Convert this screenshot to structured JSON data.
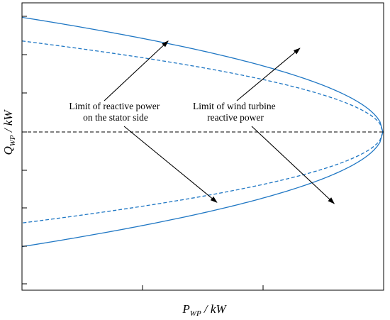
{
  "chart_data": {
    "type": "line",
    "title": "",
    "xlabel": "P",
    "xlabel_sub": "WP",
    "xlabel_unit": " / kW",
    "ylabel": "Q",
    "ylabel_sub": "WP",
    "ylabel_unit": " / kW",
    "xlim": [
      0,
      1
    ],
    "ylim": [
      -1,
      1
    ],
    "grid": false,
    "series": [
      {
        "style": "solid",
        "color": "#1f77c4",
        "x": [
          0,
          0.1,
          0.2,
          0.3,
          0.4,
          0.5,
          0.6,
          0.7,
          0.8,
          0.9,
          0.95,
          0.98,
          1.0
        ],
        "y_upper": [
          0.945,
          0.897,
          0.845,
          0.791,
          0.732,
          0.668,
          0.598,
          0.518,
          0.423,
          0.299,
          0.211,
          0.134,
          0.0
        ],
        "y_lower": [
          -0.945,
          -0.897,
          -0.845,
          -0.791,
          -0.732,
          -0.668,
          -0.598,
          -0.518,
          -0.423,
          -0.299,
          -0.211,
          -0.134,
          0.0
        ]
      },
      {
        "style": "dashed",
        "color": "#1f77c4",
        "x": [
          0,
          0.1,
          0.2,
          0.3,
          0.4,
          0.5,
          0.6,
          0.7,
          0.8,
          0.9,
          0.95,
          0.98,
          1.0
        ],
        "y_upper": [
          0.75,
          0.712,
          0.671,
          0.627,
          0.581,
          0.53,
          0.474,
          0.411,
          0.335,
          0.237,
          0.168,
          0.106,
          0.0
        ],
        "y_lower": [
          -0.75,
          -0.712,
          -0.671,
          -0.627,
          -0.581,
          -0.53,
          -0.474,
          -0.411,
          -0.335,
          -0.237,
          -0.168,
          -0.106,
          0.0
        ]
      }
    ],
    "reference_line": {
      "y": 0,
      "style": "dashed",
      "color": "#000000"
    },
    "annotations": [
      {
        "lines": [
          "Limit of reactive power",
          "on the stator side"
        ],
        "targets": [
          {
            "x": 0.405,
            "y": 0.75
          },
          {
            "x": 0.54,
            "y": -0.58
          }
        ]
      },
      {
        "lines": [
          "Limit of wind turbine",
          "reactive power"
        ],
        "targets": [
          {
            "x": 0.77,
            "y": 0.69
          },
          {
            "x": 0.865,
            "y": -0.59
          }
        ]
      }
    ]
  }
}
